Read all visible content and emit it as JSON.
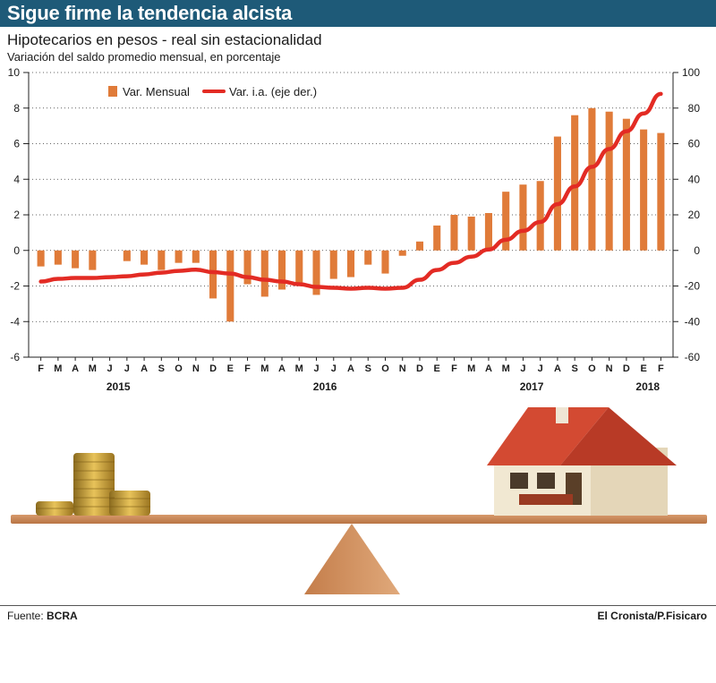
{
  "header": {
    "title": "Sigue firme la tendencia alcista",
    "subtitle": "Hipotecarios en pesos - real sin estacionalidad",
    "caption": "Variación del saldo promedio mensual, en porcentaje"
  },
  "footer": {
    "source_label": "Fuente:",
    "source_value": "BCRA",
    "credit": "El Cronista/P.Fisicaro"
  },
  "colors": {
    "title_bg": "#1e5a78",
    "bars": "#e07b39",
    "line": "#e32b24"
  },
  "chart_data": {
    "type": "bar",
    "title": "Hipotecarios en pesos - real sin estacionalidad",
    "ylabel": "Variación del saldo promedio mensual, en porcentaje",
    "categories": [
      "F",
      "M",
      "A",
      "M",
      "J",
      "J",
      "A",
      "S",
      "O",
      "N",
      "D",
      "E",
      "F",
      "M",
      "A",
      "M",
      "J",
      "J",
      "A",
      "S",
      "O",
      "N",
      "D",
      "E",
      "F",
      "M",
      "A",
      "M",
      "J",
      "J",
      "A",
      "S",
      "O",
      "N",
      "D",
      "E",
      "F"
    ],
    "years": [
      {
        "label": "2015",
        "index": 4.5
      },
      {
        "label": "2016",
        "index": 16.5
      },
      {
        "label": "2017",
        "index": 28.5
      },
      {
        "label": "2018",
        "index": 35.5
      }
    ],
    "series": [
      {
        "name": "Var. Mensual",
        "type": "bar",
        "axis": "left",
        "values": [
          -0.9,
          -0.8,
          -1.0,
          -1.1,
          0,
          -0.6,
          -0.8,
          -1.1,
          -0.7,
          -0.7,
          -2.7,
          -4.0,
          -1.9,
          -2.6,
          -2.2,
          -1.8,
          -2.5,
          -1.6,
          -1.5,
          -0.8,
          -1.3,
          -0.3,
          0.5,
          1.4,
          2.0,
          1.9,
          2.1,
          3.3,
          3.7,
          3.9,
          6.4,
          7.6,
          8.0,
          7.8,
          7.4,
          6.8,
          6.6
        ]
      },
      {
        "name": "Var. i.a. (eje der.)",
        "type": "line",
        "axis": "right",
        "values": [
          -17.5,
          -16,
          -15.5,
          -15.5,
          -15,
          -14.5,
          -13.5,
          -12.5,
          -11.5,
          -10.8,
          -12.2,
          -13,
          -15,
          -16.5,
          -17.5,
          -19,
          -20.5,
          -21,
          -21.5,
          -21,
          -21.5,
          -21,
          -16.5,
          -11,
          -7,
          -3.5,
          0.5,
          6,
          11,
          16,
          26,
          36,
          47,
          57,
          67,
          77,
          88
        ]
      }
    ],
    "ylim": [
      -6,
      10
    ],
    "y2lim": [
      -60,
      100
    ],
    "yticks": [
      -6,
      -4,
      -2,
      0,
      2,
      4,
      6,
      8,
      10
    ],
    "y2ticks": [
      -60,
      -40,
      -20,
      0,
      20,
      40,
      60,
      80,
      100
    ],
    "legend": "top-left"
  },
  "illustration": {
    "description_icon": "balance-scale-illustration"
  }
}
